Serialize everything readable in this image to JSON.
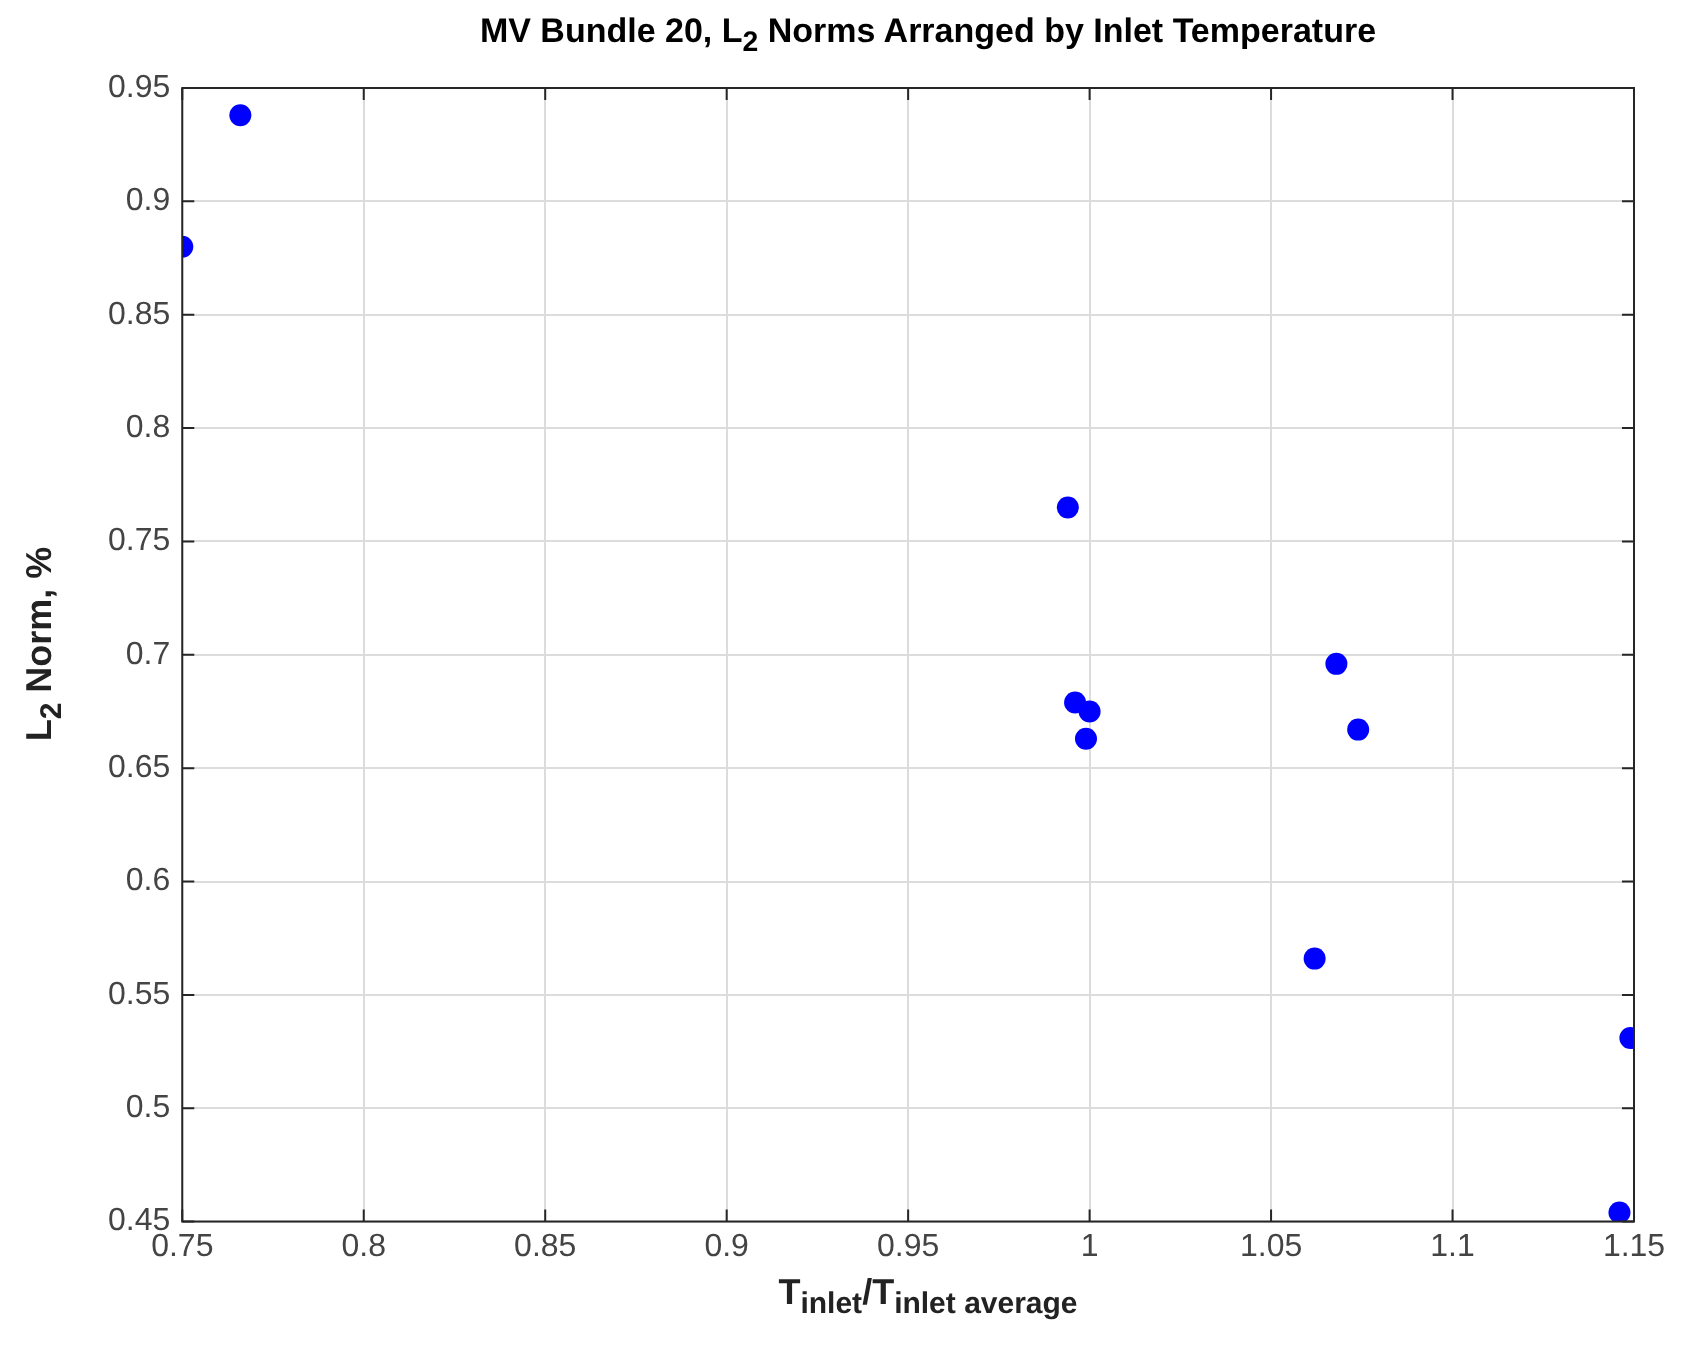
{
  "chart_data": {
    "type": "scatter",
    "title": "MV Bundle 20, L$_{2}$ Norms Arranged by Inlet Temperature",
    "xlabel": "T$_{inlet}$/T$_{inlet average}$",
    "ylabel": "L$_{2}$ Norm, %",
    "x": [
      0.75,
      0.766,
      0.994,
      0.996,
      1.0,
      0.999,
      1.068,
      1.074,
      1.062,
      1.149,
      1.146
    ],
    "series": [
      {
        "color": "#0000ff",
        "values": [
          0.88,
          0.938,
          0.765,
          0.679,
          0.675,
          0.663,
          0.696,
          0.667,
          0.566,
          0.531,
          0.454
        ]
      }
    ],
    "xlim": [
      0.75,
      1.15
    ],
    "xticks": [
      0.75,
      0.8,
      0.85,
      0.9,
      0.95,
      1,
      1.05,
      1.1,
      1.15
    ],
    "ylim": [
      0.45,
      0.95
    ],
    "yticks": [
      0.45,
      0.5,
      0.55,
      0.6,
      0.65,
      0.7,
      0.75,
      0.8,
      0.85,
      0.9,
      0.95
    ],
    "grid": true,
    "legend": false,
    "marker": "circle"
  }
}
